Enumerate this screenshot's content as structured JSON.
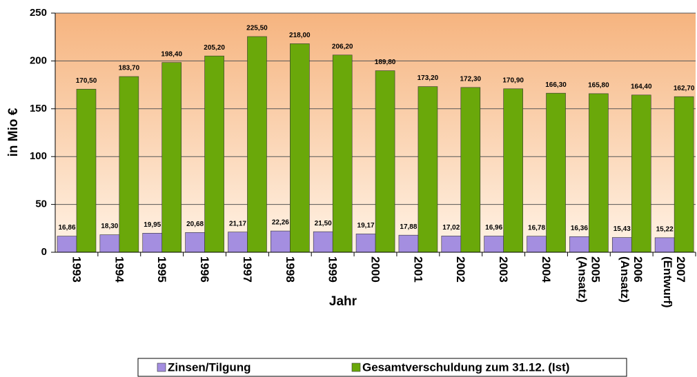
{
  "chart_data": {
    "type": "bar",
    "ylabel": "in Mio €",
    "xlabel": "Jahr",
    "categories": [
      "1993",
      "1994",
      "1995",
      "1996",
      "1997",
      "1998",
      "1999",
      "2000",
      "2001",
      "2002",
      "2003",
      "2004",
      "2005\n(Ansatz)",
      "2006\n(Ansatz)",
      "2007\n(Entwurf)"
    ],
    "series": [
      {
        "name": "Zinsen/Tilgung",
        "color": "#a48ee0",
        "values": [
          16.86,
          18.3,
          19.95,
          20.68,
          21.17,
          22.26,
          21.5,
          19.17,
          17.88,
          17.02,
          16.96,
          16.78,
          16.36,
          15.43,
          15.22
        ],
        "value_labels": [
          "16,86",
          "18,30",
          "19,95",
          "20,68",
          "21,17",
          "22,26",
          "21,50",
          "19,17",
          "17,88",
          "17,02",
          "16,96",
          "16,78",
          "16,36",
          "15,43",
          "15,22"
        ]
      },
      {
        "name": "Gesamtverschuldung zum 31.12. (Ist)",
        "color": "#6aa80a",
        "values": [
          170.5,
          183.7,
          198.4,
          205.2,
          225.5,
          218.0,
          206.2,
          189.8,
          173.2,
          172.3,
          170.9,
          166.3,
          165.8,
          164.4,
          162.7
        ],
        "value_labels": [
          "170,50",
          "183,70",
          "198,40",
          "205,20",
          "225,50",
          "218,00",
          "206,20",
          "189,80",
          "173,20",
          "172,30",
          "170,90",
          "166,30",
          "165,80",
          "164,40",
          "162,70"
        ]
      }
    ],
    "ylim": [
      0,
      250
    ],
    "yticks": [
      0,
      50,
      100,
      150,
      200,
      250
    ],
    "grid": true,
    "legend": "bottom"
  }
}
